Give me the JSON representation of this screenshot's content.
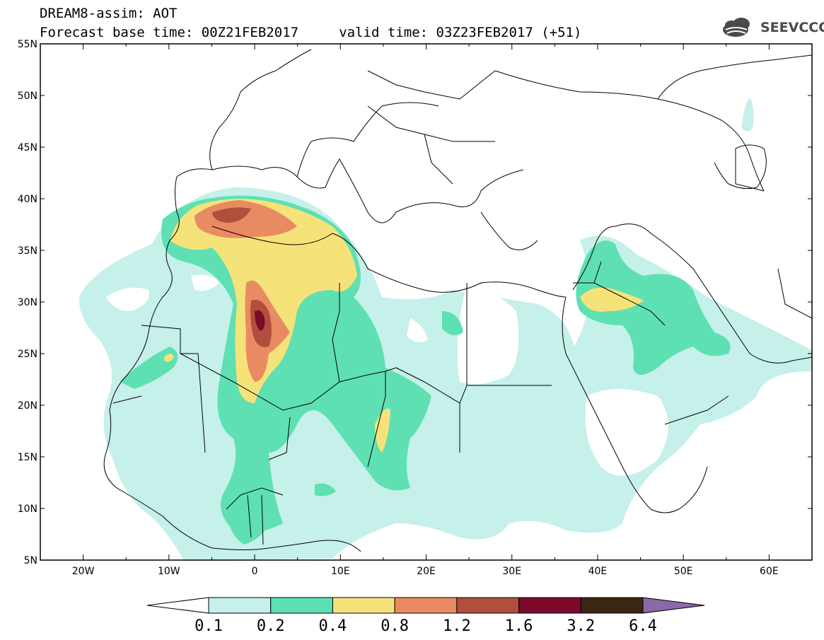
{
  "header": {
    "line1": "DREAM8-assim: AOT",
    "line2": "Forecast base time: 00Z21FEB2017     valid time: 03Z23FEB2017 (+51)",
    "logo_text": "SEEVCCC"
  },
  "map": {
    "lon_range": [
      -25,
      65
    ],
    "lat_range": [
      5,
      55
    ],
    "lat_ticks": [
      {
        "value": 55,
        "label": "55N"
      },
      {
        "value": 50,
        "label": "50N"
      },
      {
        "value": 45,
        "label": "45N"
      },
      {
        "value": 40,
        "label": "40N"
      },
      {
        "value": 35,
        "label": "35N"
      },
      {
        "value": 30,
        "label": "30N"
      },
      {
        "value": 25,
        "label": "25N"
      },
      {
        "value": 20,
        "label": "20N"
      },
      {
        "value": 15,
        "label": "15N"
      },
      {
        "value": 10,
        "label": "10N"
      },
      {
        "value": 5,
        "label": "5N"
      }
    ],
    "lon_ticks": [
      {
        "value": -20,
        "label": "20W"
      },
      {
        "value": -10,
        "label": "10W"
      },
      {
        "value": 0,
        "label": "0"
      },
      {
        "value": 10,
        "label": "10E"
      },
      {
        "value": 20,
        "label": "20E"
      },
      {
        "value": 30,
        "label": "30E"
      },
      {
        "value": 40,
        "label": "40E"
      },
      {
        "value": 50,
        "label": "50E"
      },
      {
        "value": 60,
        "label": "60E"
      }
    ]
  },
  "colorbar": {
    "labels": [
      "0.1",
      "0.2",
      "0.4",
      "0.8",
      "1.2",
      "1.6",
      "3.2",
      "6.4"
    ],
    "colors": [
      "#ffffff",
      "#c6f0ea",
      "#5fe0b3",
      "#f5e37a",
      "#e98b62",
      "#b04f3c",
      "#7d0a2a",
      "#3b2614",
      "#8b68a8"
    ]
  }
}
